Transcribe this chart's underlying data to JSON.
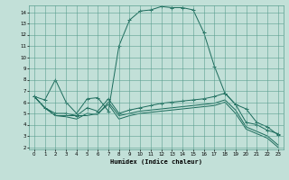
{
  "xlabel": "Humidex (Indice chaleur)",
  "background_color": "#c2e0d8",
  "grid_color": "#5a9e90",
  "line_color": "#1a6a5a",
  "xlim": [
    -0.5,
    23.5
  ],
  "ylim": [
    1.8,
    14.6
  ],
  "xticks": [
    0,
    1,
    2,
    3,
    4,
    5,
    6,
    7,
    8,
    9,
    10,
    11,
    12,
    13,
    14,
    15,
    16,
    17,
    18,
    19,
    20,
    21,
    22,
    23
  ],
  "yticks": [
    2,
    3,
    4,
    5,
    6,
    7,
    8,
    9,
    10,
    11,
    12,
    13,
    14
  ],
  "series1_x": [
    0,
    1,
    2,
    3,
    4,
    5,
    6,
    7,
    8,
    9,
    10,
    11,
    12,
    13,
    14,
    15,
    16,
    17,
    18,
    19,
    20,
    21,
    22,
    23
  ],
  "series1_y": [
    6.5,
    6.2,
    8.0,
    6.0,
    5.0,
    6.3,
    6.4,
    5.2,
    11.0,
    13.3,
    14.1,
    14.2,
    14.5,
    14.4,
    14.4,
    14.2,
    12.2,
    9.2,
    6.8,
    5.8,
    5.4,
    4.2,
    3.8,
    3.1
  ],
  "series2_x": [
    0,
    1,
    2,
    3,
    4,
    5,
    6,
    7,
    8,
    9,
    10,
    11,
    12,
    13,
    14,
    15,
    16,
    17,
    18,
    19,
    20,
    21,
    22,
    23
  ],
  "series2_y": [
    6.5,
    5.5,
    5.0,
    5.0,
    4.8,
    5.5,
    5.2,
    6.3,
    5.0,
    5.3,
    5.5,
    5.7,
    5.9,
    6.0,
    6.1,
    6.2,
    6.3,
    6.5,
    6.8,
    5.8,
    4.2,
    4.0,
    3.5,
    3.2
  ],
  "series3_x": [
    0,
    1,
    2,
    3,
    4,
    5,
    6,
    7,
    8,
    9,
    10,
    11,
    12,
    13,
    14,
    15,
    16,
    17,
    18,
    19,
    20,
    21,
    22,
    23
  ],
  "series3_y": [
    6.5,
    5.5,
    4.8,
    4.7,
    4.5,
    5.0,
    4.9,
    6.0,
    4.8,
    5.0,
    5.2,
    5.3,
    5.4,
    5.5,
    5.6,
    5.7,
    5.8,
    5.9,
    6.2,
    5.3,
    3.8,
    3.4,
    3.0,
    2.2
  ],
  "series4_x": [
    0,
    1,
    2,
    3,
    4,
    5,
    6,
    7,
    8,
    9,
    10,
    11,
    12,
    13,
    14,
    15,
    16,
    17,
    18,
    19,
    20,
    21,
    22,
    23
  ],
  "series4_y": [
    6.5,
    5.5,
    4.8,
    4.8,
    4.8,
    4.8,
    5.0,
    5.8,
    4.5,
    4.8,
    5.0,
    5.1,
    5.2,
    5.3,
    5.4,
    5.5,
    5.6,
    5.7,
    6.0,
    5.0,
    3.6,
    3.2,
    2.8,
    2.0
  ]
}
